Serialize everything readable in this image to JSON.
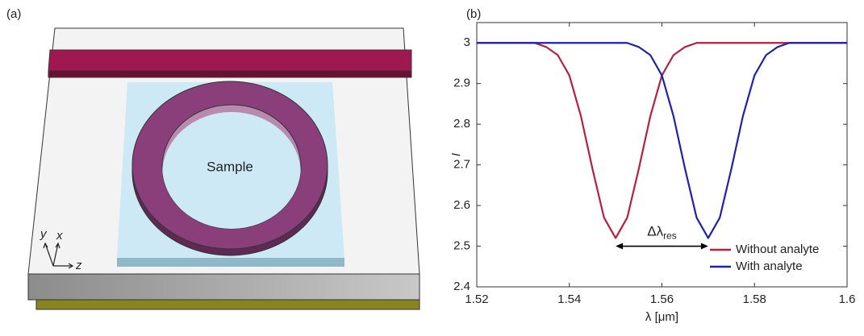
{
  "panel_a": {
    "label": "(a)",
    "sample_label": "Sample",
    "axes": {
      "y": "y",
      "x": "x",
      "z": "z"
    }
  },
  "chart_data": {
    "type": "line",
    "panel_label": "(b)",
    "x_label": "λ [μm]",
    "y_label": "I",
    "x": [
      1.52,
      1.5225,
      1.525,
      1.5275,
      1.53,
      1.5325,
      1.535,
      1.5375,
      1.54,
      1.5425,
      1.545,
      1.5475,
      1.55,
      1.5525,
      1.555,
      1.5575,
      1.56,
      1.5625,
      1.565,
      1.5675,
      1.57,
      1.5725,
      1.575,
      1.5775,
      1.58,
      1.5825,
      1.585,
      1.5875,
      1.59,
      1.5925,
      1.595,
      1.5975,
      1.6
    ],
    "series": [
      {
        "name": "Without analyte",
        "color": "#b5203f",
        "values": [
          3,
          3,
          3,
          3,
          3,
          3,
          2.99,
          2.97,
          2.92,
          2.82,
          2.69,
          2.57,
          2.52,
          2.57,
          2.69,
          2.82,
          2.92,
          2.97,
          2.99,
          3,
          3,
          3,
          3,
          3,
          3,
          3,
          3,
          3,
          3,
          3,
          3,
          3,
          3
        ]
      },
      {
        "name": "With analyte",
        "color": "#1e22a8",
        "values": [
          3,
          3,
          3,
          3,
          3,
          3,
          3,
          3,
          3,
          3,
          3,
          3,
          3,
          3,
          2.99,
          2.97,
          2.92,
          2.82,
          2.69,
          2.57,
          2.52,
          2.57,
          2.69,
          2.82,
          2.92,
          2.97,
          2.99,
          3,
          3,
          3,
          3,
          3,
          3
        ]
      }
    ],
    "annotation": {
      "text": "Δλ",
      "subscript": "res"
    },
    "xlim": [
      1.52,
      1.6
    ],
    "xticks": [
      1.52,
      1.54,
      1.56,
      1.58,
      1.6
    ],
    "ylim": [
      2.4,
      3.05
    ],
    "yticks": [
      2.4,
      2.5,
      2.6,
      2.7,
      2.8,
      2.9,
      3
    ],
    "legend": "lower right"
  }
}
